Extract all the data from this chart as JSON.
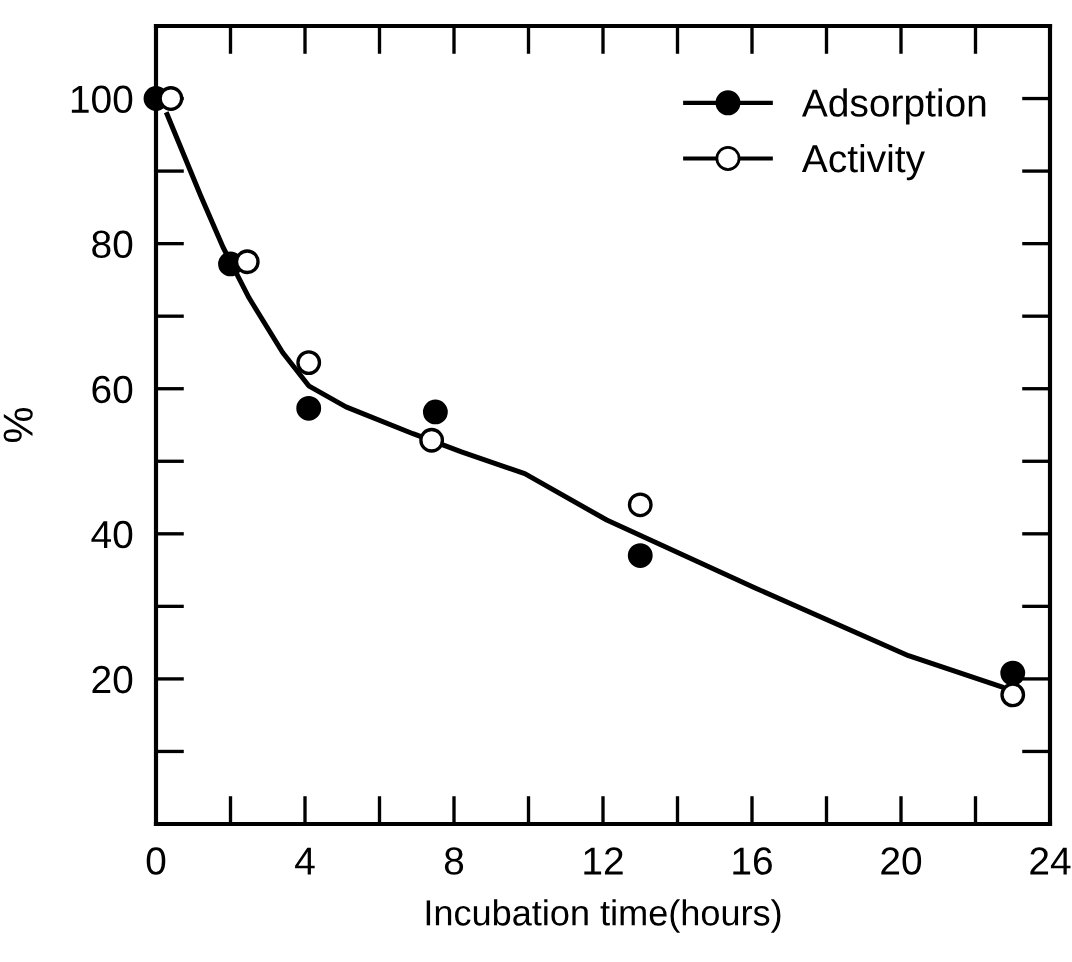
{
  "chart_data": {
    "type": "scatter",
    "xlabel": "Incubation time(hours)",
    "ylabel": "%",
    "xlim": [
      0,
      24
    ],
    "ylim": [
      0,
      110
    ],
    "xticks": [
      0,
      {
        "value": 2,
        "label": null
      },
      4,
      {
        "value": 6,
        "label": null
      },
      8,
      {
        "value": 10,
        "label": null
      },
      12,
      {
        "value": 14,
        "label": null
      },
      16,
      {
        "value": 18,
        "label": null
      },
      20,
      {
        "value": 22,
        "label": null
      },
      24
    ],
    "yticks": [
      {
        "value": 10,
        "label": null
      },
      20,
      {
        "value": 30,
        "label": null
      },
      40,
      {
        "value": 50,
        "label": null
      },
      60,
      {
        "value": 70,
        "label": null
      },
      80,
      {
        "value": 90,
        "label": null
      },
      100
    ],
    "legend": "top right",
    "grid": false,
    "series": [
      {
        "name": "Adsorption",
        "marker": "circle",
        "color": "#000000",
        "x": [
          0,
          2.0,
          4.1,
          7.5,
          13.0,
          23.0
        ],
        "values": [
          100,
          77.2,
          57.3,
          56.8,
          37.0,
          20.8
        ]
      },
      {
        "name": "Activity",
        "marker": "circle",
        "color": "#ffffff",
        "x": [
          0.4,
          2.45,
          4.1,
          7.4,
          13.0,
          23.0
        ],
        "values": [
          100,
          77.5,
          63.6,
          52.9,
          44.0,
          17.8
        ]
      },
      {
        "type": "line",
        "color": "#000000",
        "line_style": "solid",
        "x": [
          0.3,
          1.2,
          1.8,
          2.5,
          3.4,
          4.1,
          5.1,
          6.9,
          8.2,
          9.9,
          12.1,
          16.1,
          20.2,
          22.7
        ],
        "values": [
          97.8,
          86.6,
          79.5,
          72.5,
          65,
          60.4,
          57.5,
          53.8,
          51.3,
          48.3,
          41.9,
          32.5,
          23.2,
          18.9
        ]
      }
    ]
  }
}
